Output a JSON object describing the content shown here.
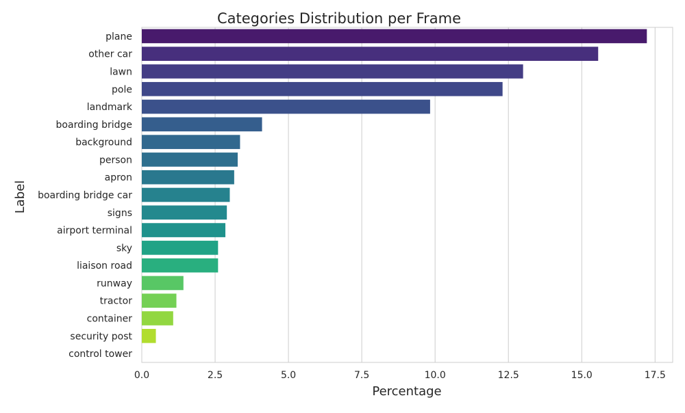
{
  "chart_data": {
    "type": "bar",
    "orientation": "horizontal",
    "title": "Categories Distribution per Frame",
    "xlabel": "Percentage",
    "ylabel": "Label",
    "xlim": [
      0,
      18.1
    ],
    "xticks": [
      0.0,
      2.5,
      5.0,
      7.5,
      10.0,
      12.5,
      15.0,
      17.5
    ],
    "xtick_labels": [
      "0.0",
      "2.5",
      "5.0",
      "7.5",
      "10.0",
      "12.5",
      "15.0",
      "17.5"
    ],
    "grid": "vertical",
    "palette": "viridis",
    "categories": [
      "plane",
      "other car",
      "lawn",
      "pole",
      "landmark",
      "boarding bridge",
      "background",
      "person",
      "apron",
      "boarding bridge car",
      "signs",
      "airport terminal",
      "sky",
      "liaison road",
      "runway",
      "tractor",
      "container",
      "security post",
      "control tower"
    ],
    "values": [
      17.22,
      15.56,
      13.0,
      12.3,
      9.83,
      4.1,
      3.35,
      3.27,
      3.15,
      3.0,
      2.9,
      2.85,
      2.6,
      2.6,
      1.42,
      1.18,
      1.07,
      0.48,
      0.0
    ],
    "colors": [
      "#481a6c",
      "#472f7d",
      "#443d84",
      "#3f4889",
      "#3b518b",
      "#355e8d",
      "#31688e",
      "#2e6f8e",
      "#2a788e",
      "#26828e",
      "#23898e",
      "#1f928c",
      "#20a386",
      "#29af7f",
      "#58c765",
      "#74d055",
      "#92d741",
      "#b1dd2f",
      "#cfe11c"
    ]
  }
}
